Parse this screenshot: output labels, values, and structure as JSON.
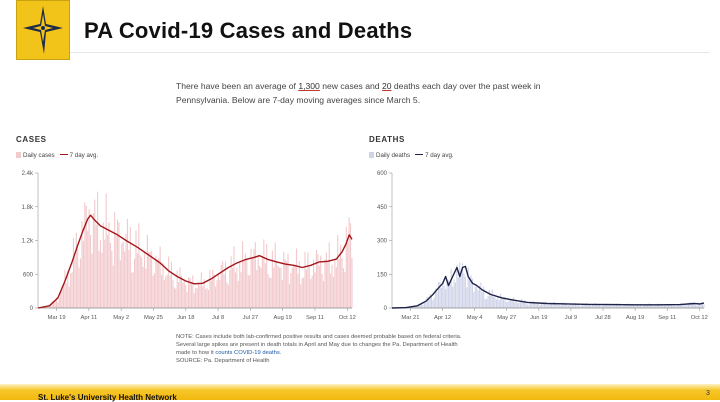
{
  "header": {
    "title": "PA  Covid-19 Cases and Deaths",
    "logo_icon": "star-cross-logo-icon",
    "accent": "#f2c318"
  },
  "intro": {
    "part1": "There have been an average of ",
    "cases_avg": "1,300",
    "part2": " new cases and ",
    "deaths_avg": "20",
    "part3": " deaths each day over the past week in Pennsylvania. Below are 7-day moving averages since March 5."
  },
  "chart_data": [
    {
      "type": "bar",
      "title": "CASES",
      "legend": {
        "bars": "Daily cases",
        "line": "7 day avg."
      },
      "colors": {
        "bars": "#f2c9cc",
        "line": "#a3171c"
      },
      "x_ticks": [
        "Mar 19",
        "Apr 11",
        "May 2",
        "May 25",
        "Jun 18",
        "Jul 8",
        "Jul 27",
        "Aug 19",
        "Sep 11",
        "Oct 12"
      ],
      "y_ticks": [
        "0",
        "600",
        "1.2k",
        "1.8k",
        "2.4k"
      ],
      "y_tick_values": [
        0,
        600,
        1200,
        1800,
        2400
      ],
      "ylim": [
        0,
        2400
      ],
      "avg_series": [
        [
          0,
          0
        ],
        [
          8,
          40
        ],
        [
          14,
          180
        ],
        [
          19,
          480
        ],
        [
          24,
          820
        ],
        [
          28,
          1120
        ],
        [
          32,
          1400
        ],
        [
          35,
          1580
        ],
        [
          37,
          1650
        ],
        [
          40,
          1560
        ],
        [
          44,
          1460
        ],
        [
          50,
          1380
        ],
        [
          56,
          1300
        ],
        [
          62,
          1200
        ],
        [
          70,
          1080
        ],
        [
          78,
          940
        ],
        [
          86,
          800
        ],
        [
          92,
          660
        ],
        [
          98,
          560
        ],
        [
          104,
          480
        ],
        [
          110,
          430
        ],
        [
          116,
          440
        ],
        [
          122,
          520
        ],
        [
          128,
          620
        ],
        [
          134,
          720
        ],
        [
          140,
          800
        ],
        [
          146,
          860
        ],
        [
          152,
          900
        ],
        [
          156,
          930
        ],
        [
          162,
          860
        ],
        [
          168,
          820
        ],
        [
          174,
          780
        ],
        [
          180,
          760
        ],
        [
          186,
          720
        ],
        [
          192,
          760
        ],
        [
          198,
          820
        ],
        [
          204,
          830
        ],
        [
          210,
          870
        ],
        [
          214,
          1000
        ],
        [
          217,
          1150
        ],
        [
          219,
          1300
        ],
        [
          221,
          1220
        ]
      ],
      "day_span": 221
    },
    {
      "type": "bar",
      "title": "DEATHS",
      "legend": {
        "bars": "Daily deaths",
        "line": "7 day avg."
      },
      "colors": {
        "bars": "#cfd3e8",
        "line": "#1f2347"
      },
      "x_ticks": [
        "Mar 21",
        "Apr 12",
        "May 4",
        "May 27",
        "Jun 19",
        "Jul 9",
        "Jul 28",
        "Aug 19",
        "Sep 11",
        "Oct 12"
      ],
      "y_ticks": [
        "0",
        "150",
        "300",
        "450",
        "600"
      ],
      "y_tick_values": [
        0,
        150,
        300,
        450,
        600
      ],
      "ylim": [
        0,
        600
      ],
      "avg_series": [
        [
          0,
          0
        ],
        [
          10,
          2
        ],
        [
          18,
          10
        ],
        [
          24,
          30
        ],
        [
          29,
          60
        ],
        [
          33,
          90
        ],
        [
          36,
          110
        ],
        [
          38,
          140
        ],
        [
          40,
          100
        ],
        [
          43,
          140
        ],
        [
          46,
          180
        ],
        [
          48,
          140
        ],
        [
          50,
          180
        ],
        [
          52,
          185
        ],
        [
          54,
          140
        ],
        [
          57,
          110
        ],
        [
          60,
          100
        ],
        [
          64,
          80
        ],
        [
          70,
          60
        ],
        [
          78,
          45
        ],
        [
          86,
          35
        ],
        [
          96,
          25
        ],
        [
          110,
          20
        ],
        [
          124,
          18
        ],
        [
          140,
          16
        ],
        [
          156,
          15
        ],
        [
          172,
          14
        ],
        [
          188,
          14
        ],
        [
          204,
          15
        ],
        [
          214,
          20
        ],
        [
          218,
          18
        ],
        [
          221,
          22
        ]
      ],
      "day_span": 221
    }
  ],
  "note": {
    "line1": "NOTE: Cases include both lab-confirmed positive results and cases deemed probable based on federal criteria.",
    "line2": "Several large spikes are present in death totals in April and May due to changes the Pa. Department of Health",
    "line3a": "made to how it ",
    "line3_link": "counts COVID-19 deaths",
    "line3b": ".",
    "source": "SOURCE: Pa. Department of Health"
  },
  "footer": {
    "organization": "St. Luke's University Health Network",
    "page_number": "3"
  }
}
